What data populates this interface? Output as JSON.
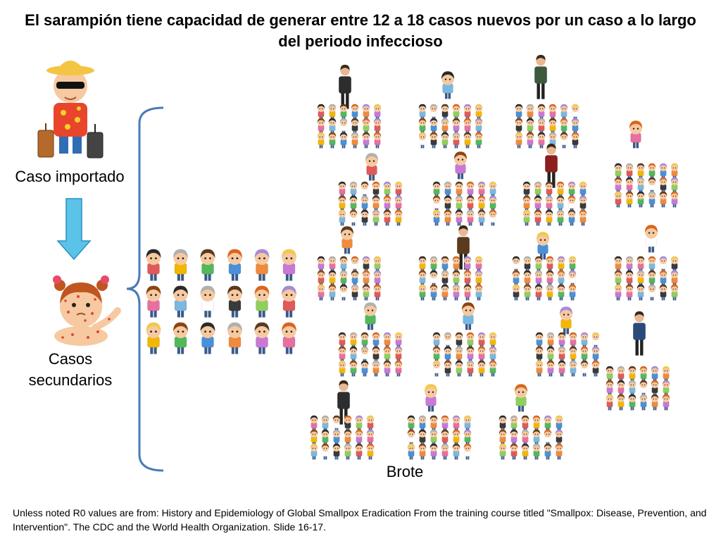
{
  "title": "El sarampión tiene capacidad de generar entre 12 a 18 casos nuevos por un caso a lo largo del periodo infeccioso",
  "labels": {
    "imported_case": "Caso importado",
    "secondary_cases": "Casos secundarios",
    "outbreak": "Brote"
  },
  "footer": "Unless noted R0 values are from: History and Epidemiology of Global Smallpox Eradication From the training course titled \"Smallpox: Disease, Prevention, and Intervention\". The CDC and the World Health Organization. Slide 16-17.",
  "colors": {
    "arrow_fill": "#5bc3e8",
    "arrow_stroke": "#2a8fc0",
    "brace": "#4a7bb7",
    "shirts": [
      "#e05a5a",
      "#f2b705",
      "#52b85a",
      "#4a90d9",
      "#f08a3c",
      "#c978d6",
      "#e86fa2",
      "#7ab8e0",
      "#ffffff",
      "#3a3a3a",
      "#8fcf5c"
    ],
    "hair": [
      "#5a3a20",
      "#2a2a2a",
      "#f2c94c",
      "#d9661f",
      "#b0b0b0",
      "#8b4513",
      "#a78bd6"
    ]
  },
  "icons": {
    "tourist": "tourist-icon",
    "sick_child": "sick-child-icon",
    "down_arrow": "down-arrow-icon",
    "brace": "curly-brace-icon",
    "person": "person-icon"
  },
  "cluster_count": 18,
  "secondary_case_count": 18
}
